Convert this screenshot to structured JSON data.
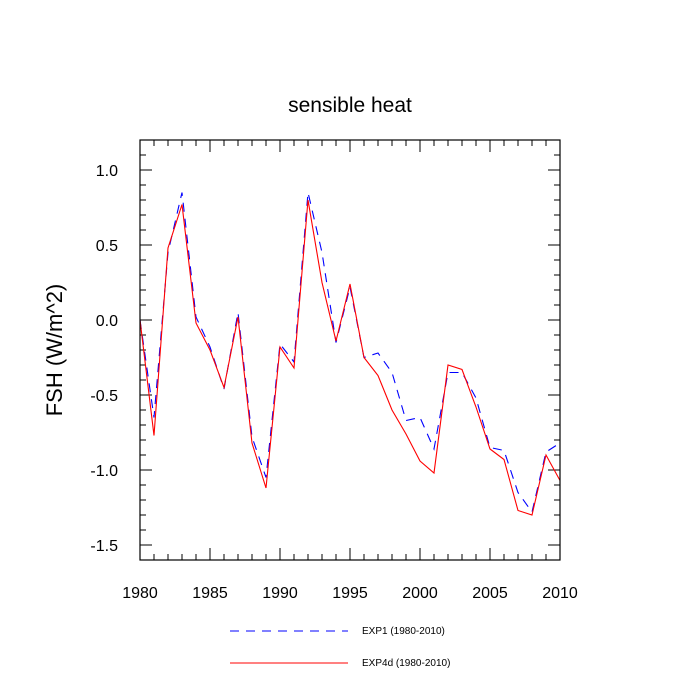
{
  "chart_data": {
    "type": "line",
    "title": "sensible heat",
    "xlabel": "",
    "ylabel": "FSH  (W/m^2)",
    "xlim": [
      1980,
      2010
    ],
    "ylim": [
      -1.6,
      1.2
    ],
    "x_ticks": [
      1980,
      1985,
      1990,
      1995,
      2000,
      2005,
      2010
    ],
    "x_tick_labels": [
      "1980",
      "1985",
      "1990",
      "1995",
      "2000",
      "2005",
      "2010"
    ],
    "y_ticks": [
      1.0,
      0.5,
      0.0,
      -0.5,
      -1.0,
      -1.5
    ],
    "y_tick_labels": [
      "1.0",
      "0.5",
      "0.0",
      "-0.5",
      "-1.0",
      "-1.5"
    ],
    "grid": false,
    "legend_position": "bottom",
    "x": [
      1980,
      1981,
      1982,
      1983,
      1984,
      1985,
      1986,
      1987,
      1988,
      1989,
      1990,
      1991,
      1992,
      1993,
      1994,
      1995,
      1996,
      1997,
      1998,
      1999,
      2000,
      2001,
      2002,
      2003,
      2004,
      2005,
      2006,
      2007,
      2008,
      2009,
      2010
    ],
    "series": [
      {
        "name": "EXP1 (1980-2010)",
        "color": "#0000ff",
        "dash": "dashed",
        "values": [
          0.0,
          -0.65,
          0.45,
          0.85,
          0.02,
          -0.18,
          -0.46,
          0.05,
          -0.78,
          -1.05,
          -0.16,
          -0.28,
          0.85,
          0.45,
          -0.15,
          0.22,
          -0.25,
          -0.22,
          -0.35,
          -0.67,
          -0.65,
          -0.86,
          -0.35,
          -0.35,
          -0.52,
          -0.85,
          -0.87,
          -1.15,
          -1.28,
          -0.88,
          -0.82
        ]
      },
      {
        "name": "EXP4d (1980-2010)",
        "color": "#ff0000",
        "dash": "solid",
        "values": [
          0.0,
          -0.77,
          0.48,
          0.77,
          -0.02,
          -0.2,
          -0.45,
          0.02,
          -0.82,
          -1.12,
          -0.18,
          -0.32,
          0.8,
          0.25,
          -0.14,
          0.24,
          -0.25,
          -0.37,
          -0.6,
          -0.76,
          -0.94,
          -1.02,
          -0.3,
          -0.33,
          -0.58,
          -0.86,
          -0.93,
          -1.27,
          -1.3,
          -0.9,
          -1.07
        ]
      }
    ]
  }
}
